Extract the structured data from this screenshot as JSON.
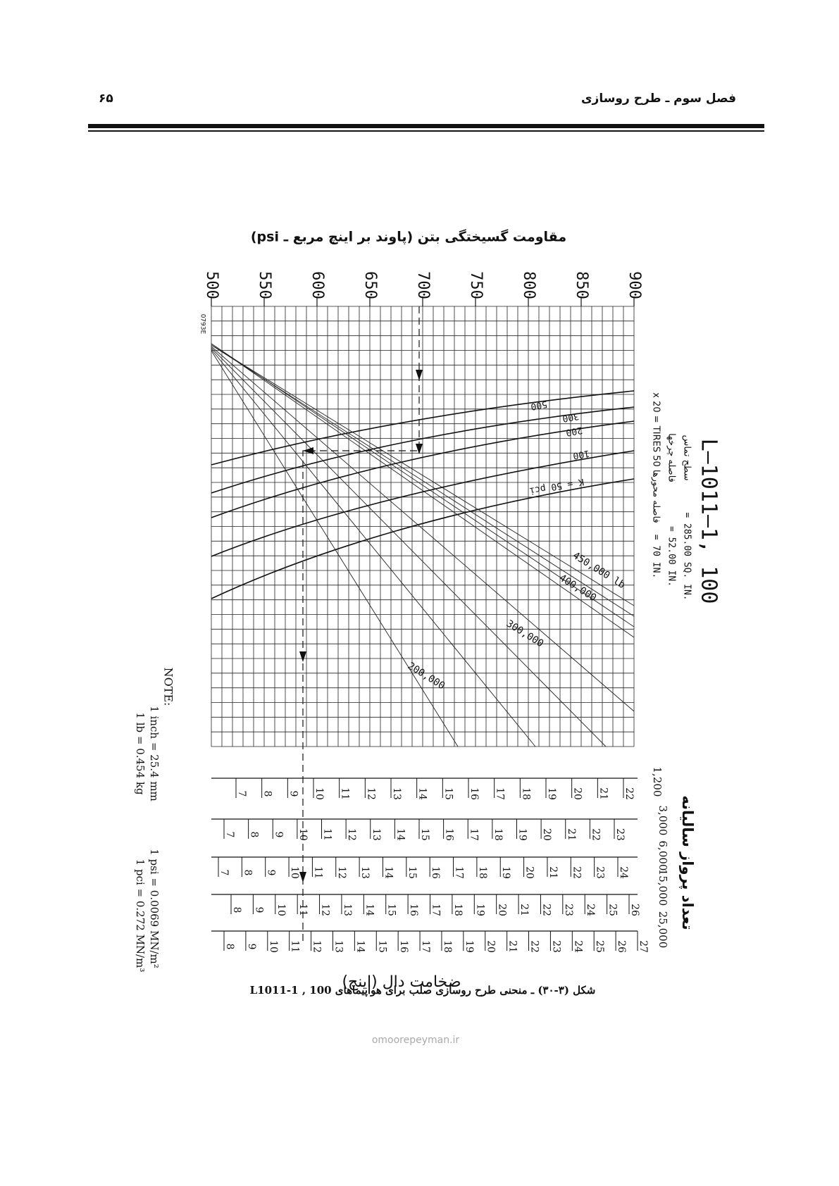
{
  "header": {
    "page_number": "۶۵",
    "chapter": "فصل سوم ـ طرح روسازی"
  },
  "figure": {
    "strength_title": "مقاومت گسیختگی بتن (پاوند بر اینچ مربع ـ psi)",
    "strength_ticks": [
      500,
      550,
      600,
      650,
      700,
      750,
      800,
      850,
      900
    ],
    "code": "0793E",
    "aircraft": {
      "name": "L–1011–1, 100",
      "lines": [
        {
          "label": "سطح تماس",
          "value": "= 285.00 SQ. IN."
        },
        {
          "label": "فاصله چرخها",
          "value": "= 52.00 IN."
        },
        {
          "label": "فاصله محورها  50 x 20 = TIRES",
          "value": "= 70 IN."
        }
      ]
    },
    "loads": [
      "450,000 lb",
      "400,000",
      "300,000",
      "200,000"
    ],
    "k_values": [
      "500",
      "300",
      "200",
      "100",
      "K = 50 pci"
    ],
    "departures_title": "تعداد پرواز سالیانه",
    "departures": [
      {
        "label": "1,200",
        "thickness": [
          7,
          8,
          9,
          10,
          11,
          12,
          13,
          14,
          15,
          16,
          17,
          18,
          19,
          20,
          21,
          22
        ]
      },
      {
        "label": "3,000",
        "thickness": [
          7,
          8,
          9,
          10,
          11,
          12,
          13,
          14,
          15,
          16,
          17,
          18,
          19,
          20,
          21,
          22,
          23
        ]
      },
      {
        "label": "6,000",
        "thickness": [
          7,
          8,
          9,
          10,
          11,
          12,
          13,
          14,
          15,
          16,
          17,
          18,
          19,
          20,
          21,
          22,
          23,
          24
        ]
      },
      {
        "label": "15,000",
        "thickness": [
          8,
          9,
          10,
          11,
          12,
          13,
          14,
          15,
          16,
          17,
          18,
          19,
          20,
          21,
          22,
          23,
          24,
          25,
          26
        ]
      },
      {
        "label": "25,000",
        "thickness": [
          8,
          9,
          10,
          11,
          12,
          13,
          14,
          15,
          16,
          17,
          18,
          19,
          20,
          21,
          22,
          23,
          24,
          25,
          26,
          27
        ]
      }
    ],
    "thickness_title": "ضخامت دال (اینچ)",
    "note": {
      "title": "NOTE:",
      "lines": [
        "1 inch = 25.4 mm",
        "1 lb = 0.454 kg",
        "1 psi = 0.0069 MN/m²",
        "1 pci = 0.272 MN/m³"
      ]
    }
  },
  "caption": "شکل (۳-۳۰) ـ منحنی طرح روسازی صلب برای هواپیماهای 100 , L1011-1",
  "watermark": "omoorepeyman.ir"
}
